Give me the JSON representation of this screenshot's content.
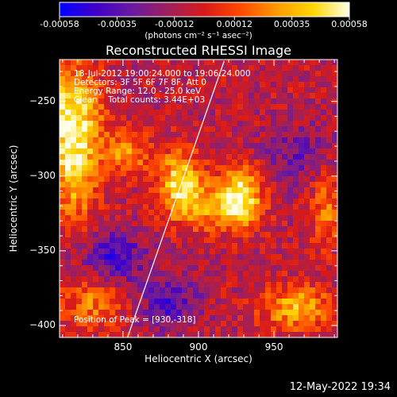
{
  "colorbar": {
    "ticks": [
      "-0.00058",
      "-0.00035",
      "-0.00012",
      "0.00012",
      "0.00035",
      "0.00058"
    ],
    "tick_values": [
      -0.00058,
      -0.00035,
      -0.00012,
      0.00012,
      0.00035,
      0.00058
    ],
    "range": [
      -0.00058,
      0.00058
    ],
    "units": "(photons cm⁻² s⁻¹ asec⁻²)",
    "palette": [
      "#0000ff",
      "#4000c8",
      "#6a1aa0",
      "#a0205a",
      "#d81a1a",
      "#ff4a00",
      "#ff9a00",
      "#ffd700",
      "#ffffe8"
    ]
  },
  "image_title": "Reconstructed RHESSI Image",
  "info": {
    "time": "18-Jul-2012 19:00:24.000 to 19:06:24.000",
    "detectors": "Detectors: 3F 5F 6F 7F 8F, Att 0",
    "energy": "Energy Range: 12.0 - 25.0 keV",
    "clean": "Clean    Total counts: 3.44E+03",
    "peak": "Position of Peak = [930,-318]"
  },
  "chart_data": {
    "type": "heatmap",
    "title": "Reconstructed RHESSI Image",
    "xlabel": "Heliocentric X (arcsec)",
    "ylabel": "Heliocentric Y (arcsec)",
    "xlim": [
      808,
      992
    ],
    "ylim": [
      -408,
      -222
    ],
    "xticks": [
      850,
      900,
      950
    ],
    "xtick_labels": [
      "850",
      "900",
      "950"
    ],
    "yticks": [
      -250,
      -300,
      -350,
      -400
    ],
    "ytick_labels": [
      "−250",
      "−300",
      "−350",
      "−400"
    ],
    "limb_line": [
      [
        853,
        -410
      ],
      [
        917,
        -223
      ]
    ],
    "peak": [
      930,
      -318
    ],
    "sources": [
      {
        "x": 815,
        "y": -258,
        "amp": 0.00058,
        "sx": 14,
        "sy": 22
      },
      {
        "x": 818,
        "y": -300,
        "amp": 0.00045,
        "sx": 10,
        "sy": 22
      },
      {
        "x": 852,
        "y": -285,
        "amp": 0.00035,
        "sx": 12,
        "sy": 10
      },
      {
        "x": 888,
        "y": -303,
        "amp": 0.00055,
        "sx": 10,
        "sy": 14
      },
      {
        "x": 928,
        "y": -313,
        "amp": 0.00058,
        "sx": 10,
        "sy": 14
      },
      {
        "x": 905,
        "y": -322,
        "amp": 0.00035,
        "sx": 18,
        "sy": 10
      },
      {
        "x": 965,
        "y": -388,
        "amp": 0.00045,
        "sx": 16,
        "sy": 10
      },
      {
        "x": 830,
        "y": -385,
        "amp": 0.0003,
        "sx": 16,
        "sy": 12
      },
      {
        "x": 985,
        "y": -322,
        "amp": 0.00028,
        "sx": 8,
        "sy": 18
      },
      {
        "x": 845,
        "y": -355,
        "amp": -0.00035,
        "sx": 14,
        "sy": 12
      },
      {
        "x": 880,
        "y": -385,
        "amp": -0.0003,
        "sx": 14,
        "sy": 12
      },
      {
        "x": 965,
        "y": -285,
        "amp": -0.0002,
        "sx": 16,
        "sy": 14
      }
    ]
  },
  "timestamp": "12-May-2022 19:34"
}
